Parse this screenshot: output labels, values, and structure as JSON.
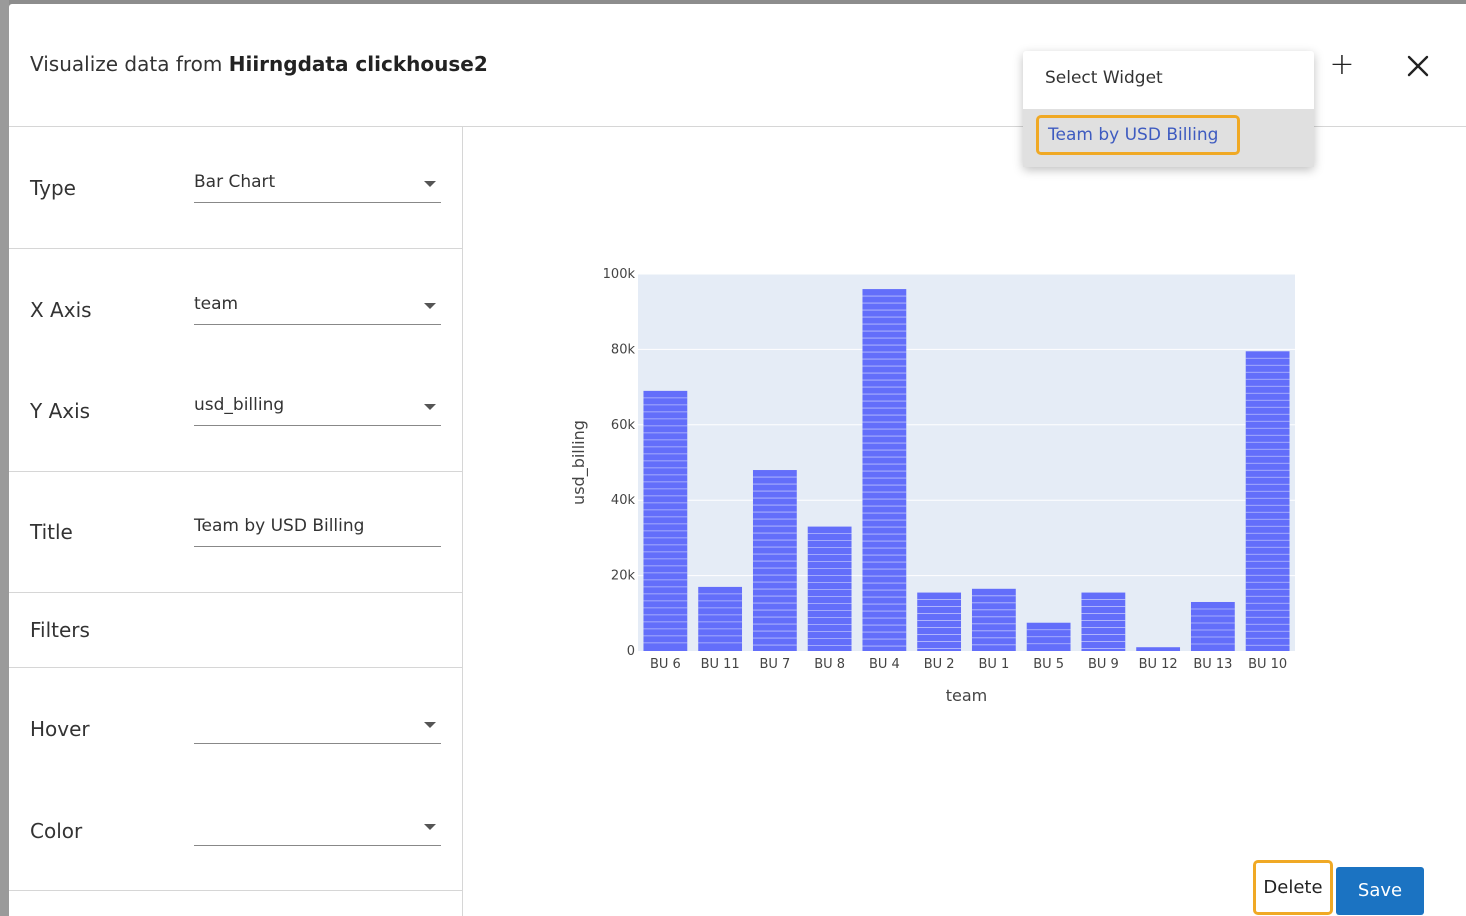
{
  "header": {
    "title_prefix": "Visualize data from",
    "source_name": "Hiirngdata clickhouse2",
    "add_label": "+"
  },
  "widget_menu": {
    "heading": "Select Widget",
    "items": [
      {
        "label": "Team by USD Billing"
      }
    ]
  },
  "form": {
    "type": {
      "label": "Type",
      "value": "Bar Chart"
    },
    "x_axis": {
      "label": "X Axis",
      "value": "team"
    },
    "y_axis": {
      "label": "Y Axis",
      "value": "usd_billing"
    },
    "title": {
      "label": "Title",
      "value": "Team by USD Billing"
    },
    "filters": {
      "label": "Filters"
    },
    "hover": {
      "label": "Hover",
      "value": ""
    },
    "color": {
      "label": "Color",
      "value": ""
    }
  },
  "actions": {
    "delete_label": "Delete",
    "save_label": "Save"
  },
  "colors": {
    "bar": "#636efa",
    "plot_bg": "#e5ecf6",
    "accent": "#1b73c2",
    "highlight": "#f0a925"
  },
  "chart_data": {
    "type": "bar",
    "categories": [
      "BU 6",
      "BU 11",
      "BU 7",
      "BU 8",
      "BU 4",
      "BU 2",
      "BU 1",
      "BU 5",
      "BU 9",
      "BU 12",
      "BU 13",
      "BU 10"
    ],
    "values": [
      69000,
      17000,
      48000,
      33000,
      96000,
      15500,
      16500,
      7500,
      15500,
      1000,
      13000,
      79500
    ],
    "xlabel": "team",
    "ylabel": "usd_billing",
    "ylim": [
      0,
      100000
    ],
    "yticks": [
      0,
      20000,
      40000,
      60000,
      80000,
      100000
    ],
    "ytick_labels": [
      "0",
      "20k",
      "40k",
      "60k",
      "80k",
      "100k"
    ],
    "grid": true
  }
}
